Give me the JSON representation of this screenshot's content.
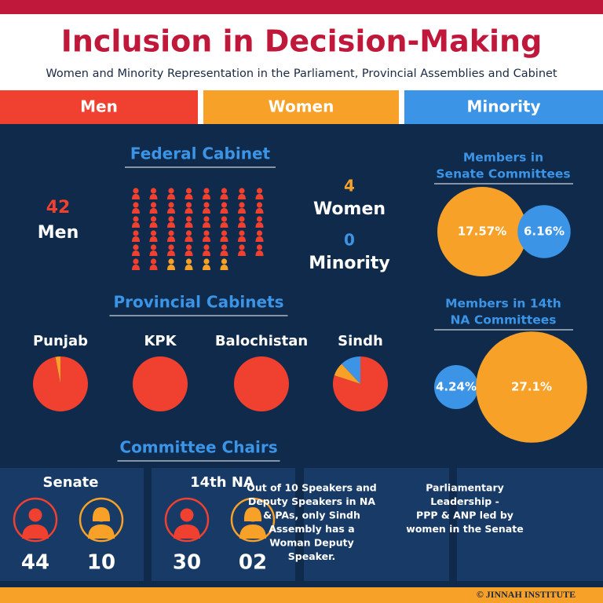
{
  "header": {
    "title": "Inclusion in Decision-Making",
    "subtitle": "Women and Minority Representation in the Parliament, Provincial Assemblies and Cabinet"
  },
  "legend": [
    {
      "label": "Men",
      "color": "#f0402f"
    },
    {
      "label": "Women",
      "color": "#f7a128"
    },
    {
      "label": "Minority",
      "color": "#3b94e6"
    }
  ],
  "federal_cabinet": {
    "title": "Federal Cabinet",
    "counts": [
      {
        "value": 42,
        "label": "Men"
      },
      {
        "value": 4,
        "label": "Women"
      },
      {
        "value": 0,
        "label": "Minority"
      }
    ]
  },
  "senate_committees": {
    "title_lines": [
      "Members in",
      "Senate Committees"
    ],
    "bubbles": [
      {
        "value": 17.57,
        "label": "17.57%",
        "color": "#f7a128"
      },
      {
        "value": 6.16,
        "label": "6.16%",
        "color": "#3b94e6"
      }
    ]
  },
  "na_committees": {
    "title_lines": [
      "Members in 14th",
      "NA Committees"
    ],
    "bubbles": [
      {
        "value": 4.24,
        "label": "4.24%",
        "color": "#3b94e6"
      },
      {
        "value": 27.1,
        "label": "27.1%",
        "color": "#f7a128"
      }
    ]
  },
  "provincial_cabinets": {
    "title": "Provincial Cabinets",
    "provinces": [
      {
        "name": "Punjab",
        "shares": [
          97,
          3,
          0
        ]
      },
      {
        "name": "KPK",
        "shares": [
          100,
          0,
          0
        ]
      },
      {
        "name": "Balochistan",
        "shares": [
          100,
          0,
          0
        ]
      },
      {
        "name": "Sindh",
        "shares": [
          80,
          8,
          12
        ]
      }
    ]
  },
  "committee_chairs": {
    "title": "Committee Chairs",
    "panels": [
      {
        "name": "Senate",
        "men": "44",
        "women": "10"
      },
      {
        "name": "14th NA",
        "men": "30",
        "women": "02"
      }
    ],
    "notes": [
      [
        "Out of 10 Speakers and",
        "Deputy Speakers in NA",
        "& PAs, only Sindh",
        "Assembly has a",
        "Woman Deputy",
        "Speaker."
      ],
      [
        "Parliamentary",
        "Leadership -",
        "PPP & ANP led by",
        "women in the Senate"
      ]
    ]
  },
  "footer": "© JINNAH INSTITUTE"
}
